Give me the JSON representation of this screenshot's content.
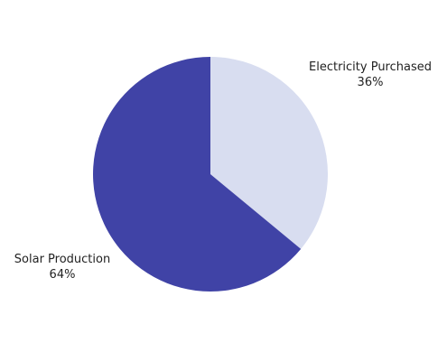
{
  "chart_data": {
    "type": "pie",
    "title": "",
    "slices": [
      {
        "label": "Electricity Purchased",
        "value": 36,
        "percent_label": "36%",
        "color": "#d8ddf0"
      },
      {
        "label": "Solar Production",
        "value": 64,
        "percent_label": "64%",
        "color": "#4043a6"
      }
    ],
    "legend": "none",
    "start_angle_deg": 0,
    "direction": "clockwise"
  }
}
